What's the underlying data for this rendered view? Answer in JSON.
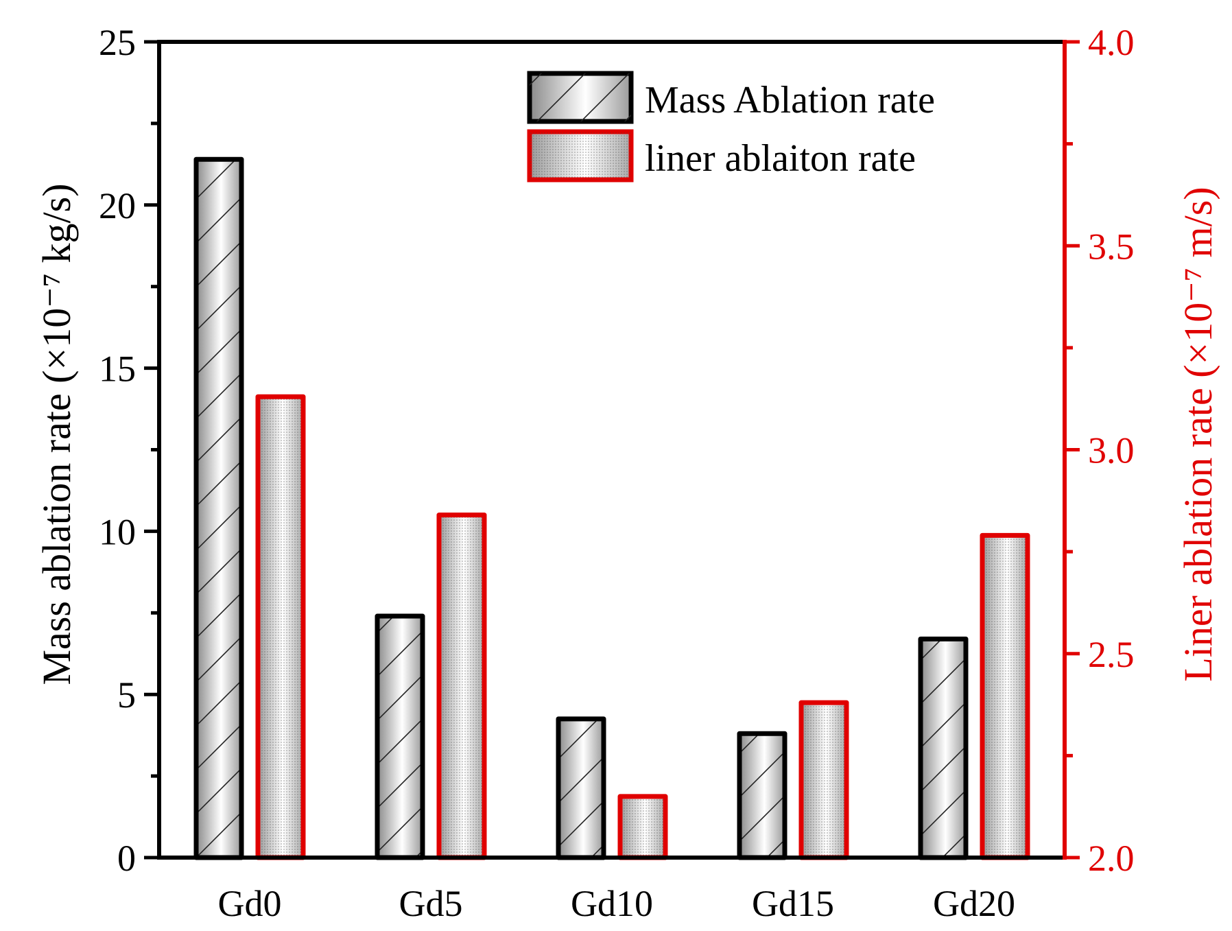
{
  "chart_data": {
    "type": "bar",
    "categories": [
      "Gd0",
      "Gd5",
      "Gd10",
      "Gd15",
      "Gd20"
    ],
    "series": [
      {
        "name": "Mass Ablation rate",
        "axis": "left",
        "values": [
          21.4,
          7.4,
          4.25,
          3.8,
          6.7
        ],
        "color": "#000000",
        "pattern": "diagonal-hatch"
      },
      {
        "name": "liner ablaiton rate",
        "axis": "right",
        "values": [
          3.13,
          2.84,
          2.15,
          2.38,
          2.79
        ],
        "color": "#e00000",
        "pattern": "dots"
      }
    ],
    "y_left": {
      "label": "Mass ablation rate (×10⁻⁷ kg/s)",
      "ylim": [
        0,
        25
      ],
      "ticks": [
        "0",
        "5",
        "10",
        "15",
        "20",
        "25"
      ],
      "tick_values": [
        0,
        5,
        10,
        15,
        20,
        25
      ],
      "color": "#000000"
    },
    "y_right": {
      "label": "Liner ablation rate (×10⁻⁷ m/s)",
      "ylim": [
        2.0,
        4.0
      ],
      "ticks": [
        "2.0",
        "2.5",
        "3.0",
        "3.5",
        "4.0"
      ],
      "tick_values": [
        2.0,
        2.5,
        3.0,
        3.5,
        4.0
      ],
      "color": "#e00000"
    },
    "grid": false,
    "legend_position": "top-right"
  }
}
